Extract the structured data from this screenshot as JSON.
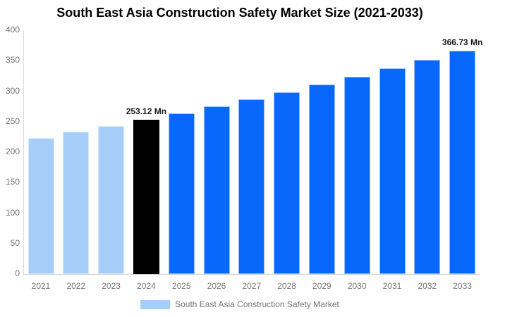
{
  "chart_data": {
    "type": "bar",
    "title": "South East Asia Construction Safety Market Size (2021-2033)",
    "categories": [
      "2021",
      "2022",
      "2023",
      "2024",
      "2025",
      "2026",
      "2027",
      "2028",
      "2029",
      "2030",
      "2031",
      "2032",
      "2033"
    ],
    "values": [
      223.68,
      233.09,
      242.9,
      253.12,
      263.77,
      274.87,
      286.43,
      298.48,
      311.04,
      324.12,
      337.76,
      351.97,
      366.73
    ],
    "bar_colors": [
      "#a6cef9",
      "#a6cef9",
      "#a6cef9",
      "#000000",
      "#0768fb",
      "#0768fb",
      "#0768fb",
      "#0768fb",
      "#0768fb",
      "#0768fb",
      "#0768fb",
      "#0768fb",
      "#0768fb"
    ],
    "annotations": [
      {
        "category": "2024",
        "text": "253.12 Mn"
      },
      {
        "category": "2033",
        "text": "366.73 Mn"
      }
    ],
    "xlabel": "",
    "ylabel": "",
    "ylim": [
      0,
      400
    ],
    "yticks": [
      0,
      50,
      100,
      150,
      200,
      250,
      300,
      350,
      400
    ],
    "grid": false,
    "legend": {
      "label": "South East Asia Construction Safety Market",
      "swatch_color": "#a6cef9",
      "position": "bottom"
    },
    "colors": {
      "historical_bar": "#a6cef9",
      "current_year_bar": "#000000",
      "forecast_bar": "#0768fb",
      "axis_line": "#d9d9d9",
      "tick_text": "#757575"
    }
  }
}
